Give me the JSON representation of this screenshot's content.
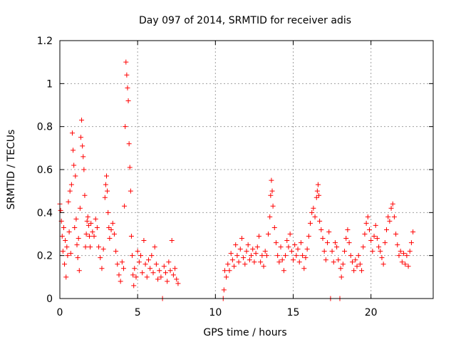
{
  "chart_data": {
    "type": "scatter",
    "title": "Day 097 of 2014, SRMTID for receiver adis",
    "xlabel": "GPS time / hours",
    "ylabel": "SRMTID / TECUs",
    "xlim": [
      0,
      24
    ],
    "ylim": [
      0,
      1.2
    ],
    "grid": true,
    "marker": "+",
    "color": "#ff0000",
    "xticks": [
      0,
      5,
      10,
      15,
      20
    ],
    "xtick_labels": [
      "0",
      "5",
      "10",
      "15",
      "20"
    ],
    "yticks": [
      0,
      0.2,
      0.4,
      0.6,
      0.8,
      1.0,
      1.2
    ],
    "ytick_labels": [
      "0",
      "0.2",
      "0.4",
      "0.6",
      "0.8",
      "1",
      "1.2"
    ],
    "series": [
      {
        "name": "SRMTID",
        "points": [
          [
            0.0,
            0.44
          ],
          [
            0.05,
            0.41
          ],
          [
            0.1,
            0.36
          ],
          [
            0.15,
            0.29
          ],
          [
            0.2,
            0.22
          ],
          [
            0.25,
            0.33
          ],
          [
            0.3,
            0.16
          ],
          [
            0.35,
            0.27
          ],
          [
            0.4,
            0.1
          ],
          [
            0.45,
            0.24
          ],
          [
            0.5,
            0.2
          ],
          [
            0.55,
            0.45
          ],
          [
            0.6,
            0.31
          ],
          [
            0.65,
            0.5
          ],
          [
            0.7,
            0.21
          ],
          [
            0.75,
            0.53
          ],
          [
            0.8,
            0.77
          ],
          [
            0.85,
            0.69
          ],
          [
            0.9,
            0.62
          ],
          [
            0.95,
            0.33
          ],
          [
            1.0,
            0.57
          ],
          [
            1.05,
            0.37
          ],
          [
            1.1,
            0.25
          ],
          [
            1.15,
            0.19
          ],
          [
            1.2,
            0.28
          ],
          [
            1.25,
            0.13
          ],
          [
            1.3,
            0.42
          ],
          [
            1.35,
            0.75
          ],
          [
            1.4,
            0.83
          ],
          [
            1.45,
            0.71
          ],
          [
            1.5,
            0.66
          ],
          [
            1.55,
            0.6
          ],
          [
            1.6,
            0.48
          ],
          [
            1.65,
            0.24
          ],
          [
            1.7,
            0.3
          ],
          [
            1.75,
            0.36
          ],
          [
            1.8,
            0.38
          ],
          [
            1.85,
            0.34
          ],
          [
            1.9,
            0.29
          ],
          [
            1.95,
            0.24
          ],
          [
            2.0,
            0.35
          ],
          [
            2.1,
            0.31
          ],
          [
            2.2,
            0.29
          ],
          [
            2.3,
            0.37
          ],
          [
            2.4,
            0.33
          ],
          [
            2.5,
            0.24
          ],
          [
            2.6,
            0.19
          ],
          [
            2.7,
            0.14
          ],
          [
            2.8,
            0.23
          ],
          [
            2.9,
            0.47
          ],
          [
            2.95,
            0.53
          ],
          [
            3.0,
            0.57
          ],
          [
            3.05,
            0.5
          ],
          [
            3.1,
            0.4
          ],
          [
            3.15,
            0.33
          ],
          [
            3.2,
            0.28
          ],
          [
            3.3,
            0.32
          ],
          [
            3.4,
            0.35
          ],
          [
            3.5,
            0.3
          ],
          [
            3.6,
            0.22
          ],
          [
            3.7,
            0.16
          ],
          [
            3.8,
            0.11
          ],
          [
            3.9,
            0.08
          ],
          [
            4.0,
            0.17
          ],
          [
            4.1,
            0.14
          ],
          [
            4.15,
            0.43
          ],
          [
            4.2,
            0.8
          ],
          [
            4.25,
            1.1
          ],
          [
            4.3,
            1.04
          ],
          [
            4.35,
            0.98
          ],
          [
            4.4,
            0.92
          ],
          [
            4.45,
            0.72
          ],
          [
            4.5,
            0.61
          ],
          [
            4.55,
            0.5
          ],
          [
            4.6,
            0.29
          ],
          [
            4.65,
            0.2
          ],
          [
            4.7,
            0.11
          ],
          [
            4.75,
            0.06
          ],
          [
            4.8,
            0.14
          ],
          [
            4.9,
            0.1
          ],
          [
            5.0,
            0.22
          ],
          [
            5.1,
            0.17
          ],
          [
            5.2,
            0.2
          ],
          [
            5.3,
            0.12
          ],
          [
            5.4,
            0.27
          ],
          [
            5.5,
            0.16
          ],
          [
            5.6,
            0.1
          ],
          [
            5.7,
            0.18
          ],
          [
            5.8,
            0.14
          ],
          [
            5.9,
            0.2
          ],
          [
            6.0,
            0.12
          ],
          [
            6.1,
            0.24
          ],
          [
            6.2,
            0.16
          ],
          [
            6.3,
            0.09
          ],
          [
            6.4,
            0.13
          ],
          [
            6.5,
            0.1
          ],
          [
            6.6,
            0.0
          ],
          [
            6.7,
            0.15
          ],
          [
            6.8,
            0.12
          ],
          [
            6.9,
            0.08
          ],
          [
            7.0,
            0.17
          ],
          [
            7.1,
            0.13
          ],
          [
            7.2,
            0.27
          ],
          [
            7.3,
            0.11
          ],
          [
            7.4,
            0.14
          ],
          [
            7.5,
            0.09
          ],
          [
            7.6,
            0.07
          ],
          [
            10.5,
            0.0
          ],
          [
            10.55,
            0.04
          ],
          [
            10.6,
            0.13
          ],
          [
            10.7,
            0.1
          ],
          [
            10.8,
            0.16
          ],
          [
            10.9,
            0.13
          ],
          [
            11.0,
            0.21
          ],
          [
            11.1,
            0.18
          ],
          [
            11.2,
            0.15
          ],
          [
            11.3,
            0.25
          ],
          [
            11.4,
            0.2
          ],
          [
            11.5,
            0.17
          ],
          [
            11.6,
            0.23
          ],
          [
            11.7,
            0.28
          ],
          [
            11.8,
            0.19
          ],
          [
            11.9,
            0.16
          ],
          [
            12.0,
            0.22
          ],
          [
            12.1,
            0.25
          ],
          [
            12.2,
            0.18
          ],
          [
            12.3,
            0.2
          ],
          [
            12.4,
            0.23
          ],
          [
            12.5,
            0.17
          ],
          [
            12.6,
            0.21
          ],
          [
            12.7,
            0.24
          ],
          [
            12.8,
            0.29
          ],
          [
            12.9,
            0.17
          ],
          [
            13.0,
            0.2
          ],
          [
            13.1,
            0.15
          ],
          [
            13.2,
            0.22
          ],
          [
            13.3,
            0.2
          ],
          [
            13.4,
            0.3
          ],
          [
            13.5,
            0.38
          ],
          [
            13.55,
            0.48
          ],
          [
            13.6,
            0.55
          ],
          [
            13.65,
            0.5
          ],
          [
            13.7,
            0.43
          ],
          [
            13.8,
            0.33
          ],
          [
            13.9,
            0.26
          ],
          [
            14.0,
            0.2
          ],
          [
            14.1,
            0.17
          ],
          [
            14.2,
            0.24
          ],
          [
            14.3,
            0.18
          ],
          [
            14.4,
            0.13
          ],
          [
            14.5,
            0.2
          ],
          [
            14.6,
            0.27
          ],
          [
            14.7,
            0.24
          ],
          [
            14.8,
            0.3
          ],
          [
            14.9,
            0.22
          ],
          [
            15.0,
            0.18
          ],
          [
            15.1,
            0.25
          ],
          [
            15.2,
            0.2
          ],
          [
            15.3,
            0.23
          ],
          [
            15.4,
            0.17
          ],
          [
            15.5,
            0.26
          ],
          [
            15.6,
            0.2
          ],
          [
            15.7,
            0.14
          ],
          [
            15.8,
            0.19
          ],
          [
            15.9,
            0.23
          ],
          [
            16.0,
            0.29
          ],
          [
            16.1,
            0.35
          ],
          [
            16.2,
            0.4
          ],
          [
            16.3,
            0.42
          ],
          [
            16.4,
            0.38
          ],
          [
            16.5,
            0.47
          ],
          [
            16.55,
            0.5
          ],
          [
            16.6,
            0.53
          ],
          [
            16.65,
            0.48
          ],
          [
            16.7,
            0.36
          ],
          [
            16.8,
            0.32
          ],
          [
            16.9,
            0.28
          ],
          [
            17.0,
            0.22
          ],
          [
            17.1,
            0.18
          ],
          [
            17.2,
            0.26
          ],
          [
            17.3,
            0.31
          ],
          [
            17.4,
            0.0
          ],
          [
            17.5,
            0.22
          ],
          [
            17.6,
            0.17
          ],
          [
            17.7,
            0.26
          ],
          [
            17.8,
            0.24
          ],
          [
            17.9,
            0.18
          ],
          [
            18.0,
            0.0
          ],
          [
            18.05,
            0.14
          ],
          [
            18.1,
            0.1
          ],
          [
            18.2,
            0.16
          ],
          [
            18.3,
            0.22
          ],
          [
            18.4,
            0.28
          ],
          [
            18.5,
            0.32
          ],
          [
            18.6,
            0.26
          ],
          [
            18.7,
            0.2
          ],
          [
            18.8,
            0.17
          ],
          [
            18.9,
            0.13
          ],
          [
            19.0,
            0.18
          ],
          [
            19.1,
            0.15
          ],
          [
            19.2,
            0.2
          ],
          [
            19.3,
            0.16
          ],
          [
            19.4,
            0.13
          ],
          [
            19.5,
            0.24
          ],
          [
            19.6,
            0.3
          ],
          [
            19.7,
            0.35
          ],
          [
            19.8,
            0.38
          ],
          [
            19.9,
            0.32
          ],
          [
            20.0,
            0.27
          ],
          [
            20.1,
            0.22
          ],
          [
            20.2,
            0.29
          ],
          [
            20.3,
            0.34
          ],
          [
            20.4,
            0.28
          ],
          [
            20.5,
            0.24
          ],
          [
            20.6,
            0.22
          ],
          [
            20.7,
            0.19
          ],
          [
            20.8,
            0.16
          ],
          [
            20.9,
            0.26
          ],
          [
            21.0,
            0.32
          ],
          [
            21.1,
            0.38
          ],
          [
            21.2,
            0.36
          ],
          [
            21.3,
            0.42
          ],
          [
            21.4,
            0.44
          ],
          [
            21.5,
            0.38
          ],
          [
            21.6,
            0.3
          ],
          [
            21.7,
            0.25
          ],
          [
            21.8,
            0.2
          ],
          [
            21.9,
            0.22
          ],
          [
            22.0,
            0.17
          ],
          [
            22.1,
            0.21
          ],
          [
            22.2,
            0.16
          ],
          [
            22.3,
            0.2
          ],
          [
            22.4,
            0.15
          ],
          [
            22.5,
            0.22
          ],
          [
            22.6,
            0.26
          ],
          [
            22.7,
            0.31
          ]
        ]
      }
    ]
  }
}
